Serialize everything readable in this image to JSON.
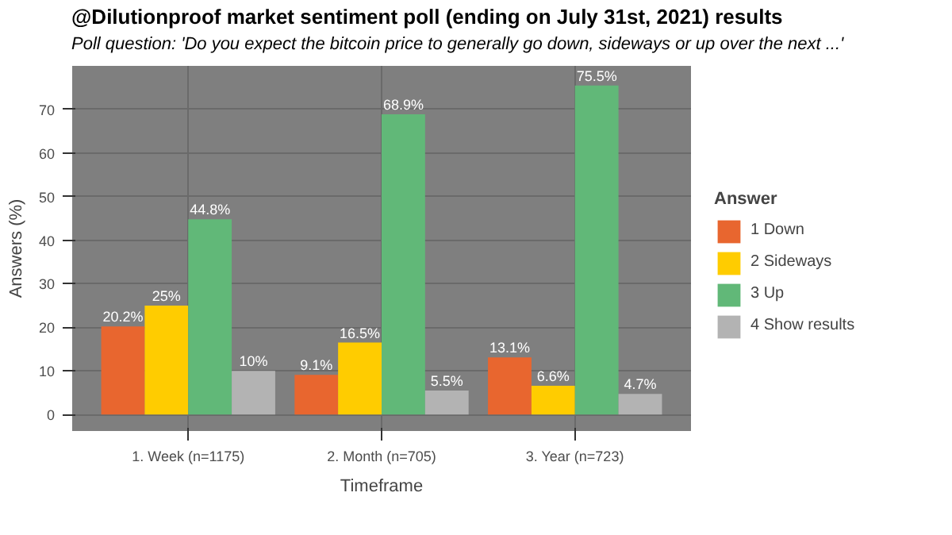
{
  "chart_data": {
    "type": "bar",
    "title": "@Dilutionproof market sentiment poll (ending on July 31st, 2021) results",
    "subtitle": "Poll question: 'Do you expect the bitcoin price to generally go down, sideways or up over the next ...'",
    "xlabel": "Timeframe",
    "ylabel": "Answers (%)",
    "legend_title": "Answer",
    "categories": [
      "1. Week (n=1175)",
      "2. Month (n=705)",
      "3. Year (n=723)"
    ],
    "series": [
      {
        "name": "1 Down",
        "color": "#e8662f",
        "values": [
          20.2,
          9.1,
          13.1
        ],
        "value_labels": [
          "20.2%",
          "9.1%",
          "13.1%"
        ]
      },
      {
        "name": "2 Sideways",
        "color": "#ffcc00",
        "values": [
          25,
          16.5,
          6.6
        ],
        "value_labels": [
          "25%",
          "16.5%",
          "6.6%"
        ]
      },
      {
        "name": "3 Up",
        "color": "#61b878",
        "values": [
          44.8,
          68.9,
          75.5
        ],
        "value_labels": [
          "44.8%",
          "68.9%",
          "75.5%"
        ]
      },
      {
        "name": "4 Show results",
        "color": "#b3b3b3",
        "values": [
          10,
          5.5,
          4.7
        ],
        "value_labels": [
          "10%",
          "5.5%",
          "4.7%"
        ]
      }
    ],
    "ylim": [
      -3.8,
      80
    ],
    "yticks": [
      0,
      10,
      20,
      30,
      40,
      50,
      60,
      70
    ],
    "grid": true,
    "legend": "right"
  }
}
